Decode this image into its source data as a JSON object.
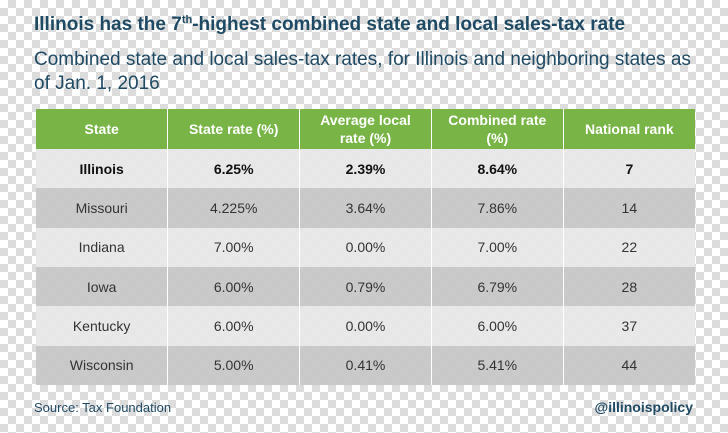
{
  "title_parts": {
    "before": "Illinois has the 7",
    "sup": "th",
    "after": "-highest combined state and local sales-tax rate"
  },
  "subtitle": "Combined state and local sales-tax rates, for Illinois and neighboring states as of Jan. 1, 2016",
  "chart_data": {
    "type": "table",
    "columns": [
      "State",
      "State rate (%)",
      "Average local rate (%)",
      "Combined rate (%)",
      "National rank"
    ],
    "rows": [
      [
        "Illinois",
        "6.25%",
        "2.39%",
        "8.64%",
        "7"
      ],
      [
        "Missouri",
        "4.225%",
        "3.64%",
        "7.86%",
        "14"
      ],
      [
        "Indiana",
        "7.00%",
        "0.00%",
        "7.00%",
        "22"
      ],
      [
        "Iowa",
        "6.00%",
        "0.79%",
        "6.79%",
        "28"
      ],
      [
        "Kentucky",
        "6.00%",
        "0.00%",
        "6.00%",
        "37"
      ],
      [
        "Wisconsin",
        "5.00%",
        "0.41%",
        "5.41%",
        "44"
      ]
    ],
    "highlight_row": "Illinois",
    "header_color": "#78b446"
  },
  "footer": {
    "source": "Source: Tax Foundation",
    "handle": "@illinoispolicy"
  },
  "colors": {
    "text": "#1f4a64",
    "row_light": "#e7e7e7",
    "row_dark": "#c6c6c6"
  }
}
